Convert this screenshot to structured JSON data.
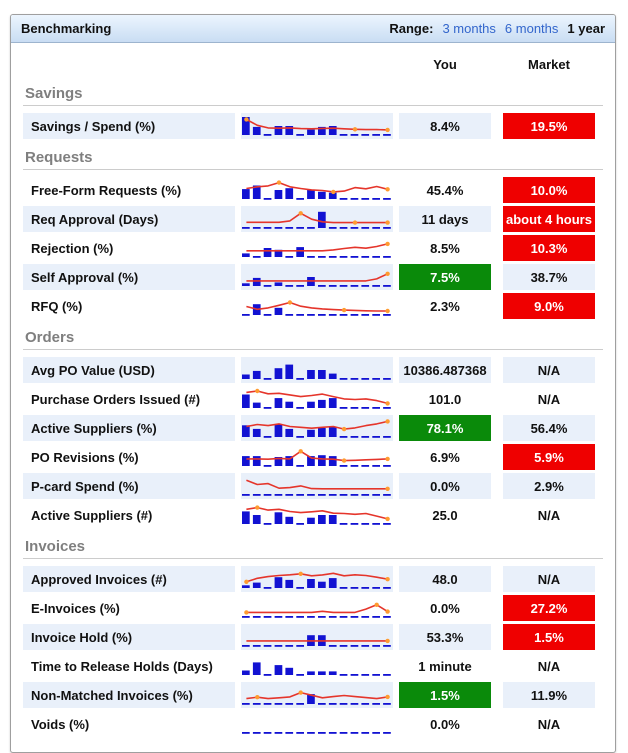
{
  "window": {
    "title": "Benchmarking"
  },
  "range": {
    "label": "Range:",
    "options": [
      {
        "label": "3 months",
        "selected": false
      },
      {
        "label": "6 months",
        "selected": false
      },
      {
        "label": "1 year",
        "selected": true
      }
    ]
  },
  "columns": {
    "you": "You",
    "market": "Market"
  },
  "colors": {
    "bar_blue": "#1212d2",
    "line_red": "#e5352b",
    "dot_orange": "#ff9b30",
    "badge_red": "#ef0000",
    "badge_green": "#0a8a0a",
    "row_blue_bg": "#e9f0fa",
    "link_blue": "#3366cc",
    "section_gray": "#7f7f7f"
  },
  "sections": [
    {
      "title": "Savings",
      "rows": [
        {
          "label": "Savings / Spend (%)",
          "you": {
            "text": "8.4%",
            "style": "plain"
          },
          "market": {
            "text": "19.5%",
            "style": "bad"
          },
          "spark": {
            "bars": [
              1,
              0.45,
              0,
              0.5,
              0.5,
              0,
              0.3,
              0.45,
              0.5,
              0,
              0,
              0,
              0,
              0
            ],
            "line": [
              0.8,
              0.45,
              0.3,
              0.28,
              0.3,
              0.26,
              0.25,
              0.27,
              0.28,
              0.25,
              0.22,
              0.2,
              0.2,
              0.18
            ],
            "dots": [
              0,
              10,
              13
            ]
          }
        }
      ]
    },
    {
      "title": "Requests",
      "rows": [
        {
          "label": "Free-Form Requests (%)",
          "you": {
            "text": "45.4%",
            "style": "plain"
          },
          "market": {
            "text": "10.0%",
            "style": "bad"
          },
          "spark": {
            "bars": [
              0.55,
              0.75,
              0,
              0.5,
              0.6,
              0,
              0.5,
              0.4,
              0.35,
              0,
              0,
              0,
              0,
              0
            ],
            "line": [
              0.5,
              0.6,
              0.65,
              0.85,
              0.6,
              0.5,
              0.42,
              0.38,
              0.3,
              0.35,
              0.55,
              0.48,
              0.62,
              0.45
            ],
            "dots": [
              3,
              8,
              13
            ]
          }
        },
        {
          "label": "Req Approval (Days)",
          "you": {
            "text": "11 days",
            "style": "plain"
          },
          "market": {
            "text": "about 4 hours",
            "style": "bad"
          },
          "spark": {
            "bars": [
              0,
              0,
              0,
              0,
              0,
              0,
              0,
              0.9,
              0,
              0,
              0,
              0,
              0,
              0
            ],
            "line": [
              0.22,
              0.22,
              0.22,
              0.22,
              0.3,
              0.75,
              0.4,
              0.25,
              0.2,
              0.2,
              0.2,
              0.2,
              0.2,
              0.2
            ],
            "dots": [
              5,
              10,
              13
            ]
          }
        },
        {
          "label": "Rejection (%)",
          "you": {
            "text": "8.5%",
            "style": "plain"
          },
          "market": {
            "text": "10.3%",
            "style": "bad"
          },
          "spark": {
            "bars": [
              0.2,
              0,
              0.5,
              0.4,
              0,
              0.55,
              0,
              0,
              0,
              0,
              0,
              0,
              0,
              0
            ],
            "line": [
              0.25,
              0.25,
              0.25,
              0.25,
              0.25,
              0.25,
              0.25,
              0.25,
              0.3,
              0.38,
              0.45,
              0.4,
              0.5,
              0.65
            ],
            "dots": [
              13
            ]
          }
        },
        {
          "label": "Self Approval (%)",
          "you": {
            "text": "7.5%",
            "style": "good"
          },
          "market": {
            "text": "38.7%",
            "style": "plain"
          },
          "spark": {
            "bars": [
              0.15,
              0.45,
              0,
              0.2,
              0,
              0,
              0.5,
              0,
              0,
              0,
              0,
              0,
              0,
              0
            ],
            "line": [
              0.18,
              0.18,
              0.18,
              0.18,
              0.18,
              0.18,
              0.18,
              0.18,
              0.18,
              0.18,
              0.18,
              0.18,
              0.3,
              0.6
            ],
            "dots": [
              13
            ]
          }
        },
        {
          "label": "RFQ (%)",
          "you": {
            "text": "2.3%",
            "style": "plain"
          },
          "market": {
            "text": "9.0%",
            "style": "bad"
          },
          "spark": {
            "bars": [
              0,
              0.6,
              0,
              0.4,
              0,
              0,
              0,
              0,
              0,
              0,
              0,
              0,
              0,
              0
            ],
            "line": [
              0.38,
              0.22,
              0.3,
              0.45,
              0.62,
              0.4,
              0.3,
              0.24,
              0.2,
              0.17,
              0.15,
              0.13,
              0.12,
              0.12
            ],
            "dots": [
              4,
              9,
              13
            ]
          }
        }
      ]
    },
    {
      "title": "Orders",
      "rows": [
        {
          "label": "Avg PO Value (USD)",
          "you": {
            "text": "10386.487368",
            "style": "plain"
          },
          "market": {
            "text": "N/A",
            "style": "plain"
          },
          "spark": {
            "bars": [
              0.25,
              0.45,
              0,
              0.6,
              0.8,
              0,
              0.5,
              0.5,
              0.3,
              0,
              0,
              0,
              0,
              0
            ],
            "line": null,
            "dots": []
          }
        },
        {
          "label": "Purchase Orders Issued (#)",
          "you": {
            "text": "101.0",
            "style": "plain"
          },
          "market": {
            "text": "N/A",
            "style": "plain"
          },
          "spark": {
            "bars": [
              0.75,
              0.3,
              0,
              0.55,
              0.35,
              0,
              0.35,
              0.45,
              0.55,
              0,
              0,
              0,
              0,
              0
            ],
            "line": [
              0.8,
              0.88,
              0.72,
              0.75,
              0.65,
              0.55,
              0.62,
              0.7,
              0.55,
              0.42,
              0.38,
              0.42,
              0.32,
              0.15
            ],
            "dots": [
              1,
              13
            ]
          }
        },
        {
          "label": "Active Suppliers (%)",
          "you": {
            "text": "78.1%",
            "style": "good"
          },
          "market": {
            "text": "56.4%",
            "style": "plain"
          },
          "spark": {
            "bars": [
              0.65,
              0.45,
              0,
              0.7,
              0.45,
              0,
              0.4,
              0.5,
              0.55,
              0,
              0,
              0,
              0,
              0
            ],
            "line": [
              0.5,
              0.62,
              0.55,
              0.65,
              0.5,
              0.45,
              0.4,
              0.45,
              0.5,
              0.35,
              0.42,
              0.55,
              0.65,
              0.8
            ],
            "dots": [
              9,
              13
            ]
          }
        },
        {
          "label": "PO Revisions (%)",
          "you": {
            "text": "6.9%",
            "style": "plain"
          },
          "market": {
            "text": "5.9%",
            "style": "bad"
          },
          "spark": {
            "bars": [
              0.55,
              0.55,
              0,
              0.5,
              0.55,
              0,
              0.55,
              0.6,
              0.55,
              0,
              0,
              0,
              0,
              0
            ],
            "line": [
              0.3,
              0.3,
              0.28,
              0.33,
              0.3,
              0.75,
              0.35,
              0.3,
              0.28,
              0.2,
              0.22,
              0.25,
              0.27,
              0.3
            ],
            "dots": [
              5,
              9,
              13
            ]
          }
        },
        {
          "label": "P-card Spend (%)",
          "you": {
            "text": "0.0%",
            "style": "plain"
          },
          "market": {
            "text": "2.9%",
            "style": "plain"
          },
          "spark": {
            "bars": [
              0,
              0,
              0,
              0,
              0,
              0,
              0,
              0,
              0,
              0,
              0,
              0,
              0,
              0
            ],
            "line": [
              0.75,
              0.5,
              0.55,
              0.28,
              0.32,
              0.42,
              0.26,
              0.25,
              0.25,
              0.25,
              0.25,
              0.25,
              0.25,
              0.25
            ],
            "dots": [
              13
            ]
          }
        },
        {
          "label": "Active Suppliers (#)",
          "you": {
            "text": "25.0",
            "style": "plain"
          },
          "market": {
            "text": "N/A",
            "style": "plain"
          },
          "spark": {
            "bars": [
              0.7,
              0.5,
              0,
              0.65,
              0.4,
              0,
              0.35,
              0.5,
              0.5,
              0,
              0,
              0,
              0,
              0
            ],
            "line": [
              0.75,
              0.85,
              0.7,
              0.75,
              0.62,
              0.55,
              0.6,
              0.66,
              0.52,
              0.5,
              0.45,
              0.5,
              0.35,
              0.18
            ],
            "dots": [
              1,
              13
            ]
          }
        }
      ]
    },
    {
      "title": "Invoices",
      "rows": [
        {
          "label": "Approved Invoices (#)",
          "you": {
            "text": "48.0",
            "style": "plain"
          },
          "market": {
            "text": "N/A",
            "style": "plain"
          },
          "spark": {
            "bars": [
              0.15,
              0.3,
              0,
              0.6,
              0.45,
              0,
              0.5,
              0.35,
              0.55,
              0,
              0,
              0,
              0,
              0
            ],
            "line": [
              0.25,
              0.45,
              0.55,
              0.62,
              0.66,
              0.72,
              0.6,
              0.65,
              0.75,
              0.6,
              0.66,
              0.62,
              0.52,
              0.4
            ],
            "dots": [
              0,
              5,
              13
            ]
          }
        },
        {
          "label": "E-Invoices (%)",
          "you": {
            "text": "0.0%",
            "style": "plain"
          },
          "market": {
            "text": "27.2%",
            "style": "bad"
          },
          "spark": {
            "bars": [
              0,
              0,
              0,
              0,
              0,
              0,
              0,
              0,
              0,
              0,
              0,
              0,
              0,
              0
            ],
            "line": [
              0.15,
              0.15,
              0.15,
              0.15,
              0.15,
              0.15,
              0.15,
              0.22,
              0.15,
              0.15,
              0.15,
              0.35,
              0.6,
              0.2
            ],
            "dots": [
              0,
              12,
              13
            ]
          }
        },
        {
          "label": "Invoice Hold (%)",
          "you": {
            "text": "53.3%",
            "style": "plain"
          },
          "market": {
            "text": "1.5%",
            "style": "bad"
          },
          "spark": {
            "bars": [
              0,
              0,
              0,
              0,
              0,
              0,
              0.6,
              0.6,
              0,
              0,
              0,
              0,
              0,
              0
            ],
            "line": [
              0.18,
              0.18,
              0.18,
              0.18,
              0.18,
              0.18,
              0.18,
              0.18,
              0.18,
              0.18,
              0.18,
              0.18,
              0.18,
              0.18
            ],
            "dots": [
              13
            ]
          }
        },
        {
          "label": "Time to Release Holds (Days)",
          "you": {
            "text": "1 minute",
            "style": "plain"
          },
          "market": {
            "text": "N/A",
            "style": "plain"
          },
          "spark": {
            "bars": [
              0.25,
              0.7,
              0,
              0.55,
              0.4,
              0,
              0.2,
              0.2,
              0.2,
              0,
              0,
              0,
              0,
              0
            ],
            "line": null,
            "dots": []
          }
        },
        {
          "label": "Non-Matched Invoices (%)",
          "you": {
            "text": "1.5%",
            "style": "good"
          },
          "market": {
            "text": "11.9%",
            "style": "plain"
          },
          "spark": {
            "bars": [
              0,
              0,
              0,
              0,
              0,
              0,
              0.55,
              0,
              0,
              0,
              0,
              0,
              0,
              0
            ],
            "line": [
              0.2,
              0.28,
              0.2,
              0.25,
              0.3,
              0.55,
              0.4,
              0.25,
              0.32,
              0.38,
              0.32,
              0.26,
              0.2,
              0.3
            ],
            "dots": [
              1,
              5,
              13
            ]
          }
        },
        {
          "label": "Voids (%)",
          "you": {
            "text": "0.0%",
            "style": "plain"
          },
          "market": {
            "text": "N/A",
            "style": "plain"
          },
          "spark": {
            "bars": [
              0,
              0,
              0,
              0,
              0,
              0,
              0,
              0,
              0,
              0,
              0,
              0,
              0,
              0
            ],
            "line": null,
            "dots": []
          }
        }
      ]
    }
  ]
}
